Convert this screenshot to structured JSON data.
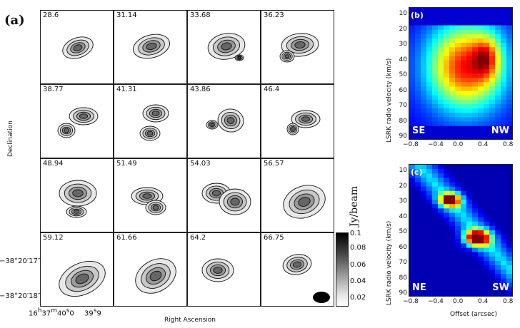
{
  "panels": {
    "a": "(a)",
    "b": "(b)",
    "c": "(c)"
  },
  "channel_maps": {
    "velocities": [
      "28.6",
      "31.14",
      "33.68",
      "36.23",
      "38.77",
      "41.31",
      "43.86",
      "46.4",
      "48.94",
      "51.49",
      "54.03",
      "56.57",
      "59.12",
      "61.66",
      "64.2",
      "66.75"
    ],
    "ylabel": "Declination",
    "xlabel": "Right Ascension",
    "yticks": [
      "−38°20′17″",
      "−38°20′18″"
    ],
    "xticks": [
      "16h37m40s.0",
      "39s.9"
    ],
    "xtick_a": "16",
    "xtick_a_h": "h",
    "xtick_a_rest": "37",
    "xtick_a_m": "m",
    "xtick_a_sec": "40",
    "xtick_a_s": "s",
    "xtick_a_dec": "0",
    "xtick_b": "39",
    "xtick_b_s": "s",
    "xtick_b_dec": "9"
  },
  "colorbar": {
    "title": "Jy/beam",
    "ticks": [
      "0.1",
      "0.08",
      "0.06",
      "0.04",
      "0.02"
    ]
  },
  "pv_b": {
    "ylabel": "LSRK radio velocity  (km/s)",
    "yticks": [
      "10",
      "20",
      "30",
      "40",
      "50",
      "60",
      "70",
      "80",
      "90"
    ],
    "xticks": [
      "−0.8",
      "−0.4",
      "0.0",
      "0.4",
      "0.8"
    ],
    "left_label": "SE",
    "right_label": "NW"
  },
  "pv_c": {
    "ylabel": "LSRK radio velocity  (km/s)",
    "yticks": [
      "10",
      "20",
      "30",
      "40",
      "50",
      "60",
      "70",
      "80",
      "90"
    ],
    "xticks": [
      "−0.8",
      "−0.4",
      "0.0",
      "0.4",
      "0.8"
    ],
    "xlabel": "Offset (arcsec)",
    "left_label": "NE",
    "right_label": "SW"
  }
}
